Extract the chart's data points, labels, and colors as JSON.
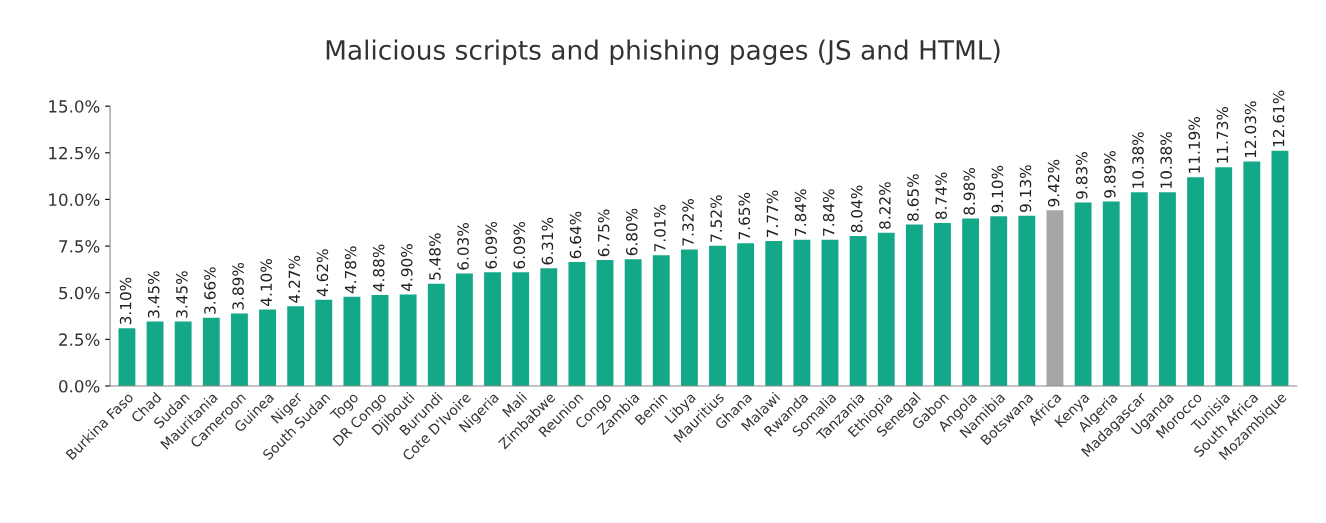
{
  "chart_data": {
    "type": "bar",
    "title": "Malicious scripts and phishing pages (JS and HTML)",
    "categories": [
      "Burkina Faso",
      "Chad",
      "Sudan",
      "Mauritania",
      "Cameroon",
      "Guinea",
      "Niger",
      "South Sudan",
      "Togo",
      "DR Congo",
      "Djibouti",
      "Burundi",
      "Cote D'Ivoire",
      "Nigeria",
      "Mali",
      "Zimbabwe",
      "Reunion",
      "Congo",
      "Zambia",
      "Benin",
      "Libya",
      "Mauritius",
      "Ghana",
      "Malawi",
      "Rwanda",
      "Somalia",
      "Tanzania",
      "Ethiopia",
      "Senegal",
      "Gabon",
      "Angola",
      "Namibia",
      "Botswana",
      "Africa",
      "Kenya",
      "Algeria",
      "Madagascar",
      "Uganda",
      "Morocco",
      "Tunisia",
      "South Africa",
      "Mozambique"
    ],
    "values": [
      3.1,
      3.45,
      3.45,
      3.66,
      3.89,
      4.1,
      4.27,
      4.62,
      4.78,
      4.88,
      4.9,
      5.48,
      6.03,
      6.09,
      6.09,
      6.31,
      6.64,
      6.75,
      6.8,
      7.01,
      7.32,
      7.52,
      7.65,
      7.77,
      7.84,
      7.84,
      8.04,
      8.22,
      8.65,
      8.74,
      8.98,
      9.1,
      9.13,
      9.42,
      9.83,
      9.89,
      10.38,
      10.38,
      11.19,
      11.73,
      12.03,
      12.61
    ],
    "value_labels": [
      "3.10%",
      "3.45%",
      "3.45%",
      "3.66%",
      "3.89%",
      "4.10%",
      "4.27%",
      "4.62%",
      "4.78%",
      "4.88%",
      "4.90%",
      "5.48%",
      "6.03%",
      "6.09%",
      "6.09%",
      "6.31%",
      "6.64%",
      "6.75%",
      "6.80%",
      "7.01%",
      "7.32%",
      "7.52%",
      "7.65%",
      "7.77%",
      "7.84%",
      "7.84%",
      "8.04%",
      "8.22%",
      "8.65%",
      "8.74%",
      "8.98%",
      "9.10%",
      "9.13%",
      "9.42%",
      "9.83%",
      "9.89%",
      "10.38%",
      "10.38%",
      "11.19%",
      "11.73%",
      "12.03%",
      "12.61%"
    ],
    "colors": [
      "#13a888",
      "#13a888",
      "#13a888",
      "#13a888",
      "#13a888",
      "#13a888",
      "#13a888",
      "#13a888",
      "#13a888",
      "#13a888",
      "#13a888",
      "#13a888",
      "#13a888",
      "#13a888",
      "#13a888",
      "#13a888",
      "#13a888",
      "#13a888",
      "#13a888",
      "#13a888",
      "#13a888",
      "#13a888",
      "#13a888",
      "#13a888",
      "#13a888",
      "#13a888",
      "#13a888",
      "#13a888",
      "#13a888",
      "#13a888",
      "#13a888",
      "#13a888",
      "#13a888",
      "#a6a6a6",
      "#13a888",
      "#13a888",
      "#13a888",
      "#13a888",
      "#13a888",
      "#13a888",
      "#13a888",
      "#13a888"
    ],
    "ylim": [
      0,
      15
    ],
    "yticks": [
      {
        "value": 0,
        "label": "0.0%"
      },
      {
        "value": 2.5,
        "label": "2.5%"
      },
      {
        "value": 5,
        "label": "5.0%"
      },
      {
        "value": 7.5,
        "label": "7.5%"
      },
      {
        "value": 10,
        "label": "10.0%"
      },
      {
        "value": 12.5,
        "label": "12.5%"
      },
      {
        "value": 15,
        "label": "15.0%"
      }
    ],
    "grid": false
  }
}
